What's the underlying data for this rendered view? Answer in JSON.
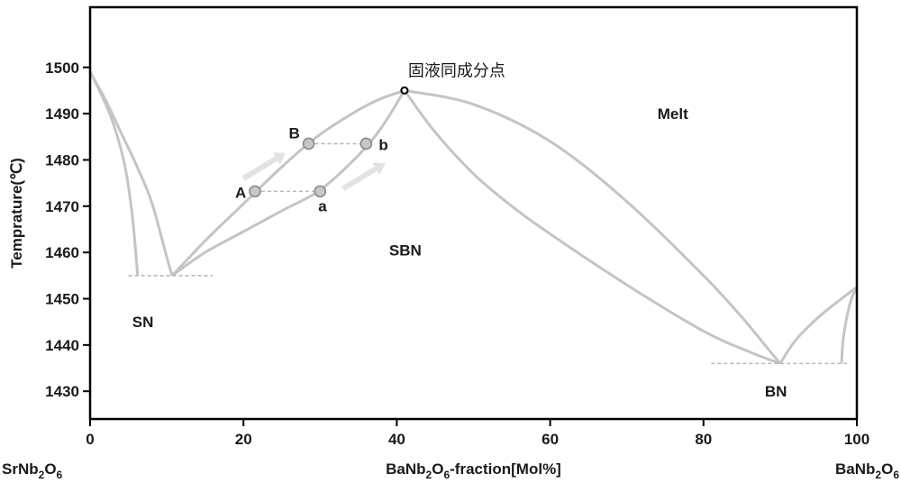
{
  "chart_data": {
    "type": "phase-diagram",
    "xlabel_pre": "BaNb",
    "xlabel_mid": "O",
    "xlabel_post": "-fraction[Mol%]",
    "xlabel_sub1": "2",
    "xlabel_sub2": "6",
    "ylabel": "Temprature(℃)",
    "xlim": [
      0,
      100
    ],
    "ylim": [
      1424,
      1513
    ],
    "x_ticks": [
      "0",
      "20",
      "40",
      "60",
      "80",
      "100"
    ],
    "y_ticks": [
      "1430",
      "1440",
      "1450",
      "1460",
      "1470",
      "1480",
      "1490",
      "1500"
    ],
    "end_labels": {
      "left": {
        "base": "SrNb",
        "mid": "O",
        "sub1": "2",
        "sub2": "6"
      },
      "right": {
        "base": "BaNb",
        "mid": "O",
        "sub1": "2",
        "sub2": "6"
      }
    },
    "regions": {
      "melt": "Melt",
      "sbn": "SBN",
      "sn": "SN",
      "bn": "BN"
    },
    "congruent_point": {
      "label": "固液同成分点",
      "x": 41,
      "y": 1495
    },
    "points": [
      {
        "label": "A",
        "x": 21.5,
        "y": 1473.2
      },
      {
        "label": "B",
        "x": 28.5,
        "y": 1483.5
      },
      {
        "label": "a",
        "x": 30,
        "y": 1473.2
      },
      {
        "label": "b",
        "x": 36,
        "y": 1483.5
      }
    ],
    "curves": [
      {
        "name": "SN liquidus",
        "points": [
          [
            0,
            1499
          ],
          [
            2,
            1493
          ],
          [
            4,
            1486
          ],
          [
            6,
            1479
          ],
          [
            8,
            1471
          ],
          [
            10,
            1459
          ],
          [
            10.7,
            1455
          ]
        ]
      },
      {
        "name": "SN solidus",
        "points": [
          [
            0,
            1499
          ],
          [
            1.5,
            1494
          ],
          [
            3,
            1488
          ],
          [
            4.5,
            1479
          ],
          [
            5.5,
            1468
          ],
          [
            6.2,
            1455
          ]
        ]
      },
      {
        "name": "SBN liquidus",
        "points": [
          [
            10.7,
            1455
          ],
          [
            15,
            1462.5
          ],
          [
            20,
            1470.5
          ],
          [
            25,
            1478.5
          ],
          [
            30,
            1485.5
          ],
          [
            35,
            1490.8
          ],
          [
            38,
            1493.3
          ],
          [
            41,
            1495
          ]
        ]
      },
      {
        "name": "SBN solidus",
        "points": [
          [
            10.7,
            1455
          ],
          [
            15,
            1460
          ],
          [
            20,
            1464.5
          ],
          [
            25,
            1469
          ],
          [
            30,
            1473.5
          ],
          [
            35,
            1481
          ],
          [
            38,
            1487
          ],
          [
            41,
            1495
          ]
        ]
      },
      {
        "name": "BN liquidus",
        "points": [
          [
            41,
            1495
          ],
          [
            50,
            1492
          ],
          [
            60,
            1484
          ],
          [
            70,
            1471
          ],
          [
            80,
            1455
          ],
          [
            85,
            1446
          ],
          [
            88,
            1440
          ],
          [
            90,
            1436
          ]
        ]
      },
      {
        "name": "SBN solidus right",
        "points": [
          [
            41,
            1495
          ],
          [
            45,
            1486
          ],
          [
            50,
            1477
          ],
          [
            55,
            1470
          ],
          [
            60,
            1464
          ],
          [
            70,
            1453
          ],
          [
            80,
            1443
          ],
          [
            86,
            1438.5
          ],
          [
            90,
            1436
          ]
        ]
      },
      {
        "name": "BN right liquidus",
        "points": [
          [
            90,
            1436
          ],
          [
            92,
            1441
          ],
          [
            95,
            1446
          ],
          [
            98,
            1450
          ],
          [
            100,
            1452.5
          ]
        ]
      },
      {
        "name": "BN right solidus",
        "points": [
          [
            98,
            1436
          ],
          [
            98.2,
            1441
          ],
          [
            98.7,
            1446
          ],
          [
            99.3,
            1450
          ],
          [
            100,
            1452.5
          ]
        ]
      }
    ],
    "eutectic_lines": [
      {
        "x1": 5,
        "x2": 16,
        "y": 1455
      },
      {
        "x1": 81,
        "x2": 99,
        "y": 1436
      }
    ],
    "tie_lines": [
      {
        "x1": 21.5,
        "x2": 30,
        "y": 1473.2
      },
      {
        "x1": 28.5,
        "x2": 36,
        "y": 1483.5
      }
    ],
    "arrows": [
      {
        "x1": 20,
        "y1": 1476,
        "x2": 25.5,
        "y2": 1481.5
      },
      {
        "x1": 33,
        "y1": 1473.8,
        "x2": 38.5,
        "y2": 1479.3
      }
    ],
    "colors": {
      "curve": "#c4c4c4",
      "axis": "#000000",
      "text": "#1a1a1a"
    }
  }
}
